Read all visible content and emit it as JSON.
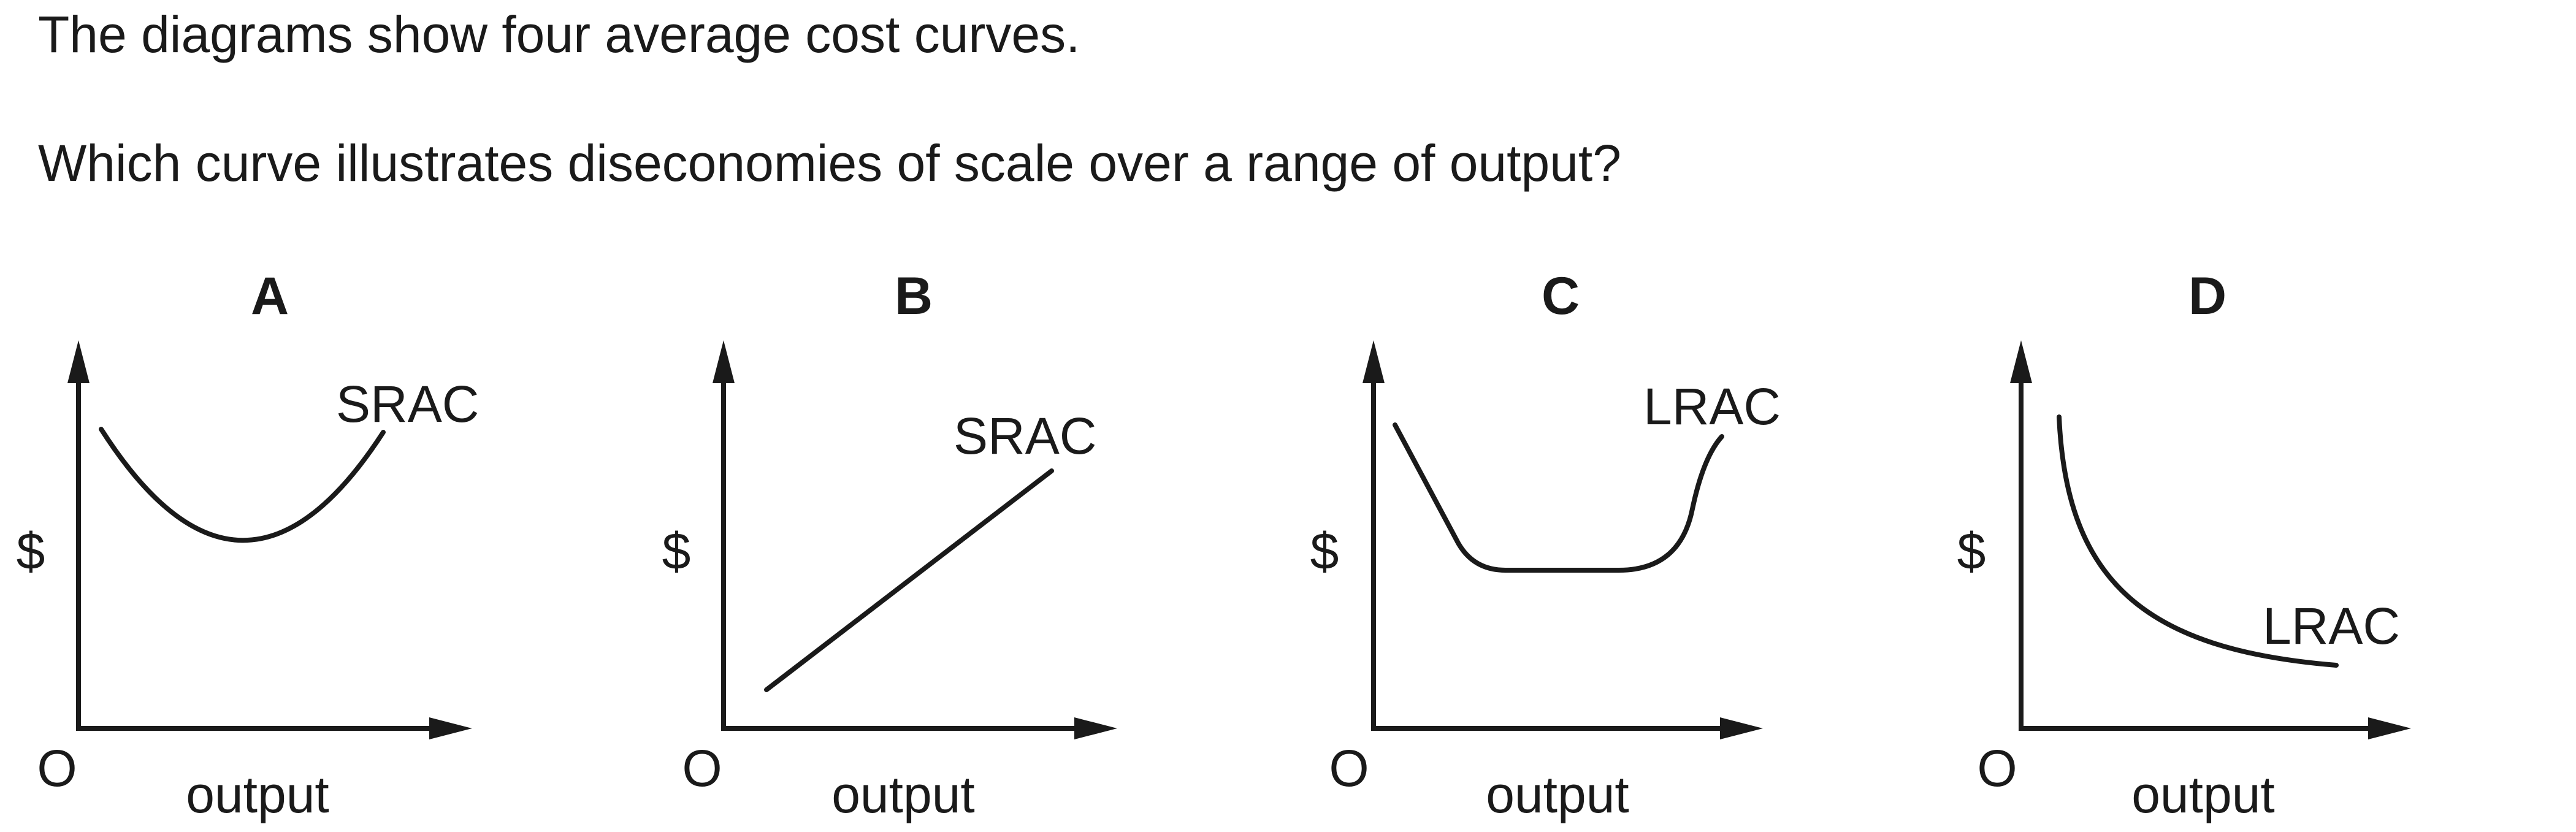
{
  "question": {
    "intro": "The diagrams show four average cost curves.",
    "prompt": "Which curve illustrates diseconomies of scale over a range of output?"
  },
  "panels": [
    {
      "id": "A",
      "title": "A",
      "y_axis_label": "$",
      "x_axis_label": "output",
      "origin_label": "O",
      "curve_label": "SRAC",
      "curve_shape": "U-shaped"
    },
    {
      "id": "B",
      "title": "B",
      "y_axis_label": "$",
      "x_axis_label": "output",
      "origin_label": "O",
      "curve_label": "SRAC",
      "curve_shape": "upward-sloping straight line"
    },
    {
      "id": "C",
      "title": "C",
      "y_axis_label": "$",
      "x_axis_label": "output",
      "origin_label": "O",
      "curve_label": "LRAC",
      "curve_shape": "falling, flat, then rising"
    },
    {
      "id": "D",
      "title": "D",
      "y_axis_label": "$",
      "x_axis_label": "output",
      "origin_label": "O",
      "curve_label": "LRAC",
      "curve_shape": "continuously falling"
    }
  ],
  "colors": {
    "ink": "#1a1a1a",
    "background": "#ffffff"
  }
}
